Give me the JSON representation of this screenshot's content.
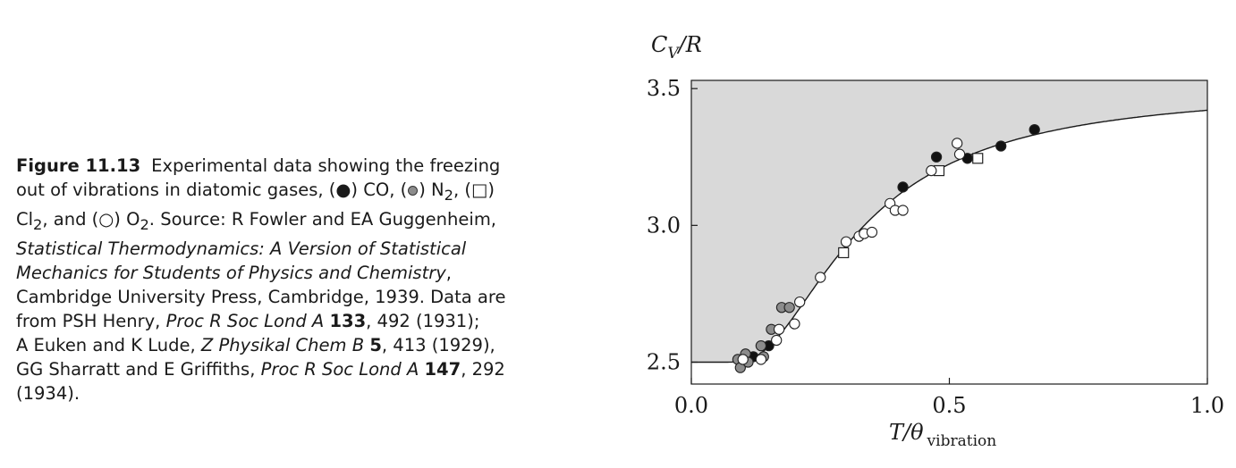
{
  "caption": {
    "label": "Figure 11.13",
    "line1": "Experimental data showing the freezing",
    "line2a": "out of vibrations in diatomic gases, (●) CO, (",
    "line2b": ") N",
    "line2c": ", (□)",
    "line3a": "Cl",
    "line3b": ", and (○) O",
    "line3c": ". Source: R Fowler and EA Guggenheim,",
    "sub2": "2",
    "line4": "Statistical Thermodynamics: A Version of Statistical",
    "line5a": "Mechanics for Students of Physics and Chemistry",
    "line5b": ",",
    "line6": "Cambridge University Press, Cambridge, 1939. Data are",
    "line7a": "from PSH Henry, ",
    "line7b": "Proc R Soc Lond A",
    "line7c": "133",
    "line7d": ", 492 (1931);",
    "line8a": "A Euken and K Lude, ",
    "line8b": "Z Physikal Chem B",
    "line8c": "5",
    "line8d": ", 413 (1929),",
    "line9a": "GG Sharratt and E Griffiths, ",
    "line9b": "Proc R Soc Lond A",
    "line9c": "147",
    "line9d": ", 292",
    "line10": "(1934)."
  },
  "chart_data": {
    "type": "scatter",
    "xlabel": "T/θ",
    "xlabel_sub": "vibration",
    "ylabel": "C",
    "ylabel_sub": "V",
    "ylabel_tail": "/R",
    "xlim": [
      0.0,
      1.0
    ],
    "ylim": [
      2.42,
      3.53
    ],
    "xticks": [
      "0.0",
      "0.5",
      "1.0"
    ],
    "xtick_values": [
      0.0,
      0.5,
      1.0
    ],
    "yticks": [
      "2.5",
      "3.0",
      "3.5"
    ],
    "ytick_values": [
      2.5,
      3.0,
      3.5
    ],
    "grid": false,
    "colors": {
      "shade": "#d9d9d9",
      "CO": "#111111",
      "N2": "#8c8c8c",
      "Cl2": "#ffffff",
      "O2": "#ffffff",
      "line": "#1a1a1a"
    },
    "series": [
      {
        "marker": "filled-circle",
        "points": [
          [
            0.12,
            2.52
          ],
          [
            0.15,
            2.56
          ],
          [
            0.41,
            3.14
          ],
          [
            0.475,
            3.25
          ],
          [
            0.535,
            3.245
          ],
          [
            0.6,
            3.29
          ],
          [
            0.665,
            3.35
          ]
        ]
      },
      {
        "marker": "gray-circle",
        "points": [
          [
            0.09,
            2.51
          ],
          [
            0.095,
            2.48
          ],
          [
            0.105,
            2.53
          ],
          [
            0.11,
            2.5
          ],
          [
            0.135,
            2.56
          ],
          [
            0.14,
            2.52
          ],
          [
            0.155,
            2.62
          ],
          [
            0.175,
            2.7
          ],
          [
            0.19,
            2.7
          ]
        ]
      },
      {
        "marker": "open-square",
        "points": [
          [
            0.295,
            2.9
          ],
          [
            0.48,
            3.2
          ],
          [
            0.555,
            3.245
          ]
        ]
      },
      {
        "marker": "open-circle",
        "points": [
          [
            0.1,
            2.51
          ],
          [
            0.135,
            2.51
          ],
          [
            0.165,
            2.58
          ],
          [
            0.17,
            2.62
          ],
          [
            0.2,
            2.64
          ],
          [
            0.21,
            2.72
          ],
          [
            0.25,
            2.81
          ],
          [
            0.3,
            2.94
          ],
          [
            0.325,
            2.96
          ],
          [
            0.335,
            2.97
          ],
          [
            0.35,
            2.975
          ],
          [
            0.385,
            3.08
          ],
          [
            0.395,
            3.055
          ],
          [
            0.41,
            3.055
          ],
          [
            0.465,
            3.2
          ],
          [
            0.515,
            3.3
          ],
          [
            0.52,
            3.26
          ]
        ]
      }
    ],
    "curve": "Einstein vibrational heat capacity C_V/R = 2.5 + (1/x)^2 e^(1/x)/(e^(1/x)-1)^2, x = T/θ"
  }
}
